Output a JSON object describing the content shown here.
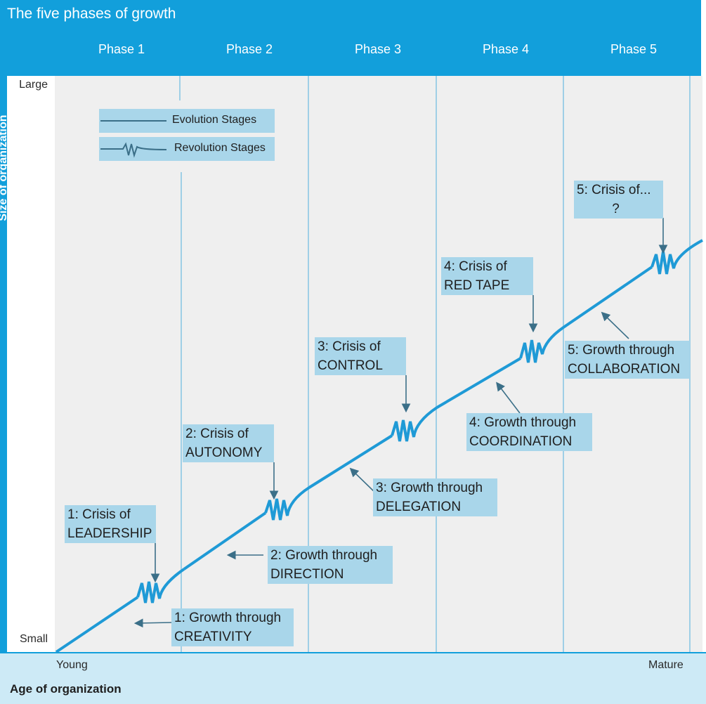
{
  "title": "The five phases of growth",
  "phases": [
    "Phase 1",
    "Phase 2",
    "Phase 3",
    "Phase 4",
    "Phase 5"
  ],
  "y_axis": {
    "title": "Size of organization",
    "top": "Large",
    "bottom": "Small"
  },
  "x_axis": {
    "title": "Age of organization",
    "left": "Young",
    "right": "Mature"
  },
  "legend": {
    "evolution": "Evolution Stages",
    "revolution": "Revolution Stages"
  },
  "crises": [
    {
      "line1": "1: Crisis of",
      "line2": "LEADERSHIP"
    },
    {
      "line1": "2: Crisis of",
      "line2": "AUTONOMY"
    },
    {
      "line1": "3: Crisis of",
      "line2": "CONTROL"
    },
    {
      "line1": "4: Crisis of",
      "line2": "RED TAPE"
    },
    {
      "line1": "5: Crisis of...",
      "line2": "?"
    }
  ],
  "growths": [
    {
      "line1": "1: Growth through",
      "line2": "CREATIVITY"
    },
    {
      "line1": "2: Growth through",
      "line2": "DIRECTION"
    },
    {
      "line1": "3: Growth through",
      "line2": "DELEGATION"
    },
    {
      "line1": "4: Growth through",
      "line2": "COORDINATION"
    },
    {
      "line1": "5: Growth through",
      "line2": "COLLABORATION"
    }
  ],
  "colors": {
    "header": "#129fdb",
    "curve": "#1f9ad6",
    "label_bg": "#a9d6ea",
    "divider": "#9fcfe6",
    "arrow": "#3b6f88"
  }
}
